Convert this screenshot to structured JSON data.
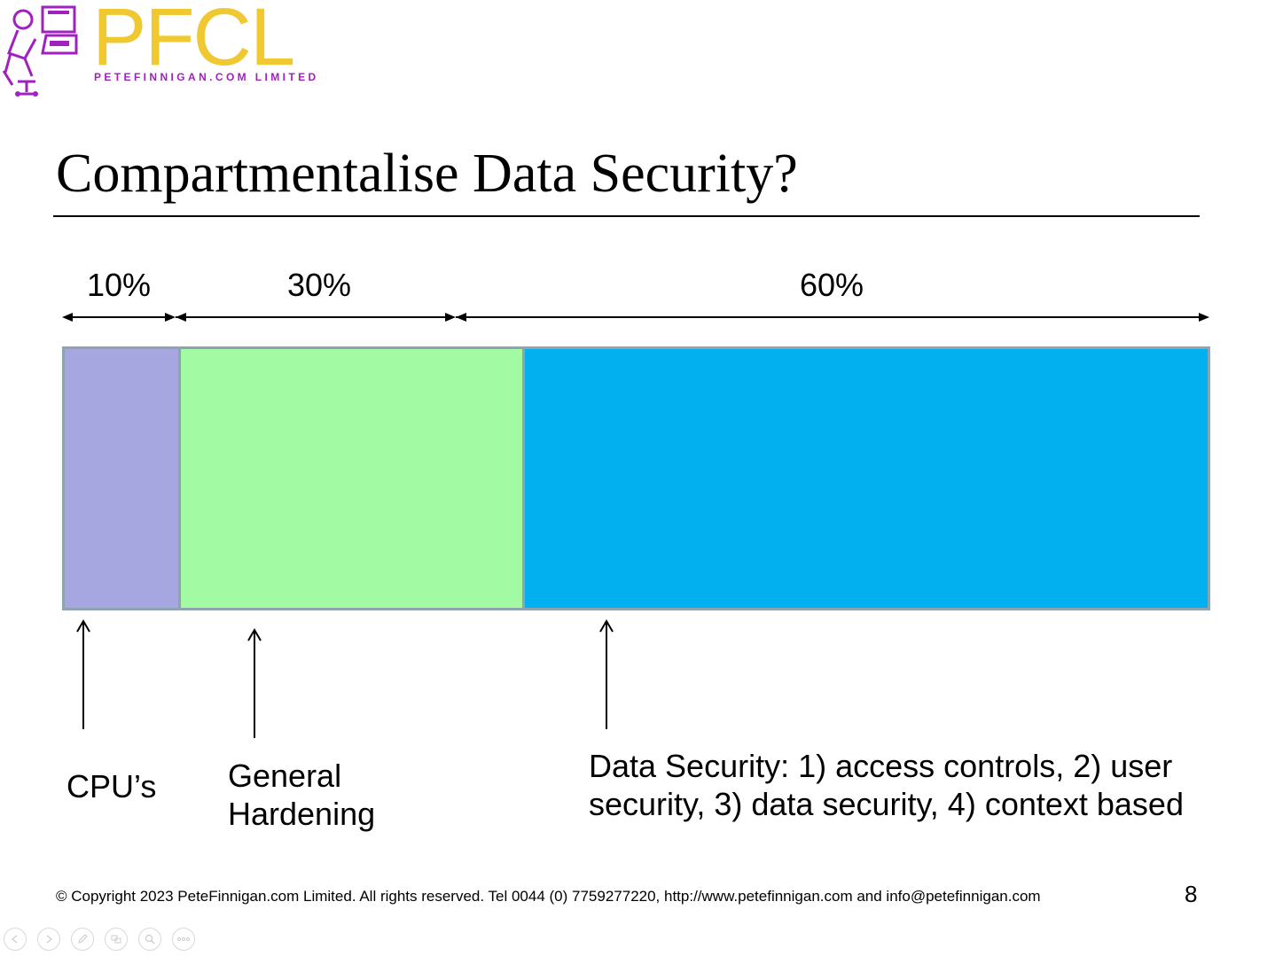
{
  "logo": {
    "name": "PFCL",
    "tagline": "PETEFINNIGAN.COM LIMITED",
    "colors": {
      "wordmark": "#f0c832",
      "figure": "#a020c0"
    }
  },
  "title": "Compartmentalise Data Security?",
  "percent_labels": [
    "10%",
    "30%",
    "60%"
  ],
  "segments": [
    {
      "label": "CPU’s",
      "fraction": 0.1,
      "color": "#a6a6e0"
    },
    {
      "label_line1": "General",
      "label_line2": "Hardening",
      "fraction": 0.3,
      "color": "#a2fba2"
    },
    {
      "label_line1": "Data Security: 1) access controls, 2) user",
      "label_line2": "security, 3) data security, 4) context based",
      "fraction": 0.6,
      "color": "#02b0ef"
    }
  ],
  "footer": "© Copyright  2023 PeteFinnigan.com Limited. All rights reserved. Tel 0044 (0) 7759277220, http://www.petefinnigan.com and info@petefinnigan.com",
  "page_number": "8",
  "controls": [
    {
      "icon": "previous-icon"
    },
    {
      "icon": "next-icon"
    },
    {
      "icon": "pen-icon"
    },
    {
      "icon": "slides-icon"
    },
    {
      "icon": "zoom-icon"
    },
    {
      "icon": "more-icon"
    }
  ]
}
